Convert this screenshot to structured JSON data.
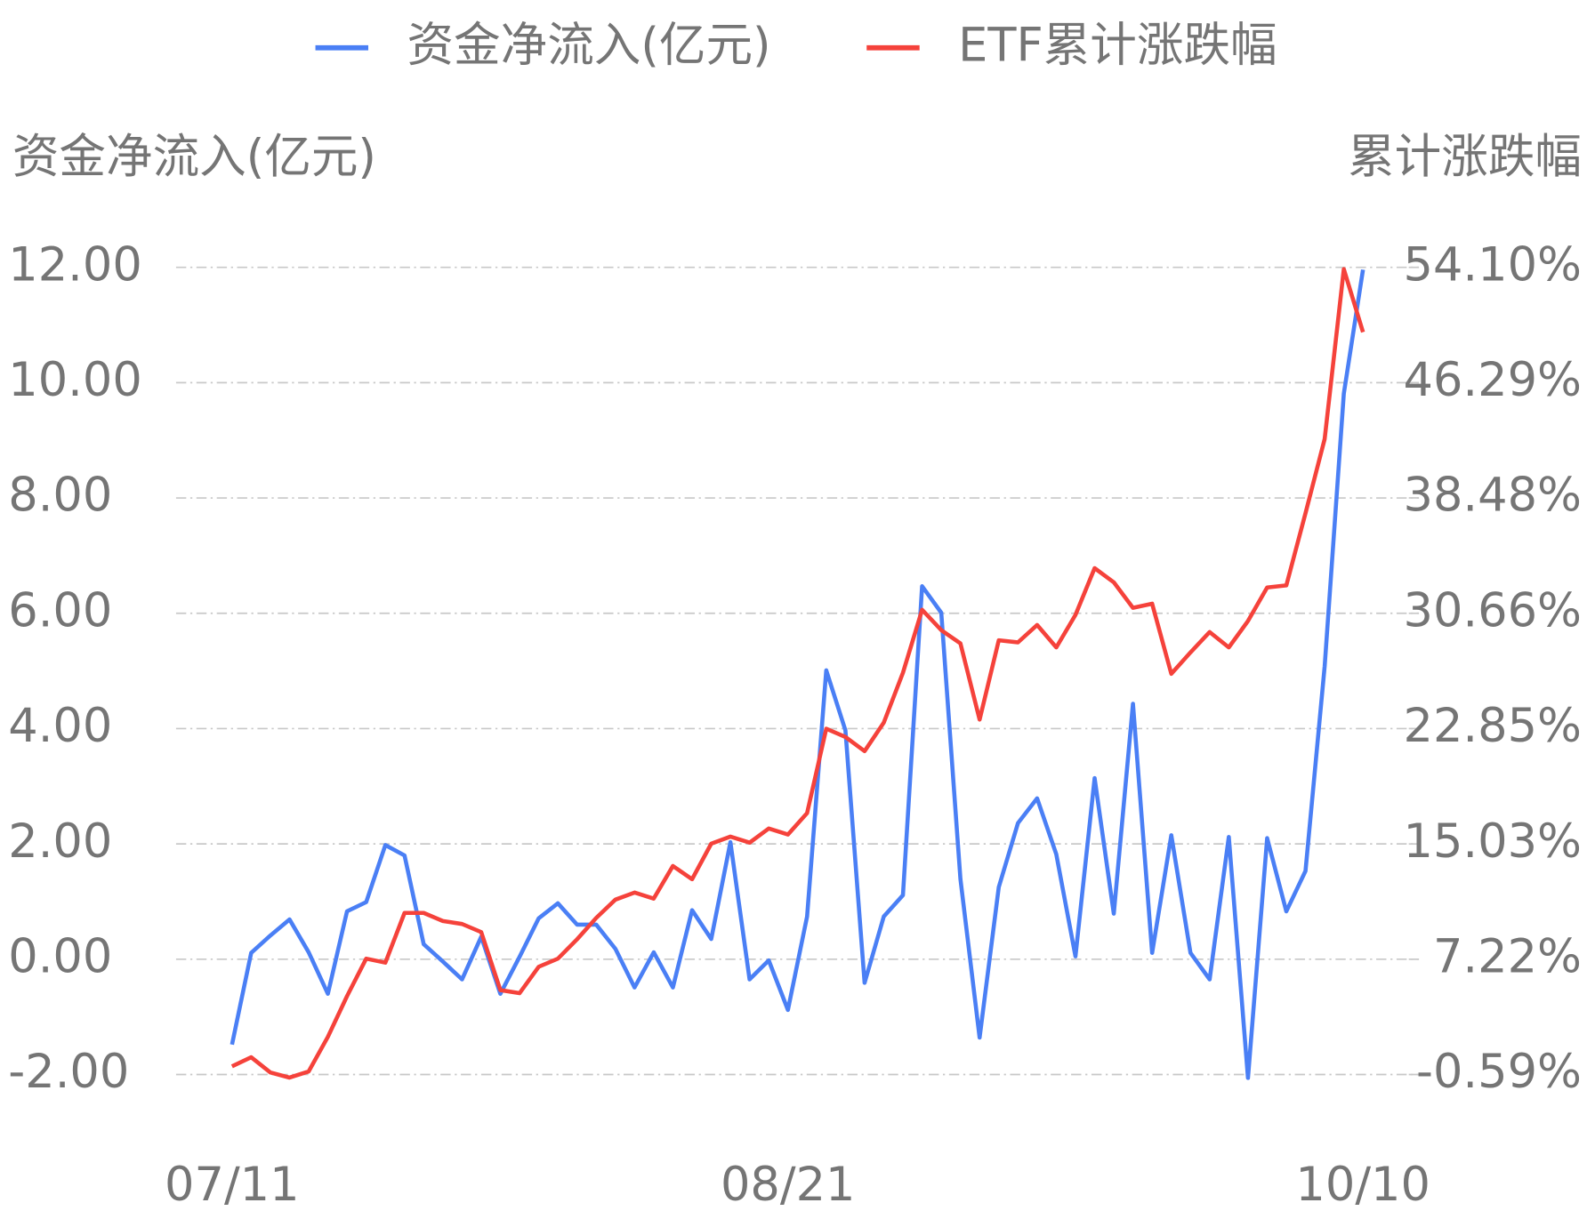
{
  "chart_data": {
    "type": "line",
    "y_label": "资金净流入(亿元)",
    "y2_label": "累计涨跌幅",
    "categories": [
      "07/11",
      null,
      null,
      null,
      null,
      null,
      null,
      null,
      null,
      null,
      null,
      null,
      null,
      null,
      null,
      null,
      null,
      null,
      null,
      null,
      null,
      null,
      null,
      null,
      null,
      null,
      null,
      null,
      null,
      "08/21",
      null,
      null,
      null,
      null,
      null,
      null,
      null,
      null,
      null,
      null,
      null,
      null,
      null,
      null,
      null,
      null,
      null,
      null,
      null,
      null,
      null,
      null,
      null,
      null,
      null,
      null,
      null,
      null,
      null,
      "10/10"
    ],
    "series": [
      {
        "name": "资金净流入(亿元)",
        "color": "#4a7ff5",
        "values": [
          -1.48,
          0.11,
          0.41,
          0.69,
          0.12,
          -0.6,
          0.83,
          0.99,
          1.98,
          1.8,
          0.26,
          -0.04,
          -0.35,
          0.39,
          -0.6,
          0.04,
          0.71,
          0.97,
          0.6,
          0.6,
          0.18,
          -0.49,
          0.12,
          -0.49,
          0.85,
          0.35,
          2.03,
          -0.35,
          -0.02,
          -0.88,
          0.74,
          5.01,
          3.97,
          -0.41,
          0.74,
          1.11,
          6.47,
          6.01,
          1.39,
          -1.36,
          1.25,
          2.36,
          2.79,
          1.82,
          0.05,
          3.14,
          0.79,
          4.43,
          0.11,
          2.15,
          0.11,
          -0.35,
          2.12,
          -2.06,
          2.1,
          0.83,
          1.53,
          5.08,
          9.81,
          11.96
        ]
      },
      {
        "name": "ETF累计涨跌幅",
        "color": "#f5423b",
        "axis": "y2",
        "values": [
          -0.04,
          0.58,
          -0.45,
          -0.8,
          -0.38,
          1.96,
          4.72,
          7.26,
          6.99,
          10.36,
          10.36,
          9.81,
          9.61,
          9.06,
          5.13,
          4.92,
          6.71,
          7.26,
          8.57,
          10.02,
          11.26,
          11.74,
          11.33,
          13.54,
          12.64,
          15.05,
          15.53,
          15.12,
          16.08,
          15.67,
          17.12,
          22.84,
          22.28,
          21.32,
          23.25,
          26.63,
          30.9,
          29.52,
          28.62,
          23.46,
          28.83,
          28.69,
          29.87,
          28.35,
          30.55,
          33.72,
          32.76,
          31.03,
          31.31,
          26.56,
          28.01,
          29.39,
          28.35,
          30.14,
          32.41,
          32.55,
          37.44,
          42.47,
          53.98,
          49.71
        ]
      }
    ],
    "ylim": [
      -2,
      12
    ],
    "yticks": [
      {
        "value": -2,
        "label": "-2.00"
      },
      {
        "value": 0,
        "label": "0.00"
      },
      {
        "value": 2,
        "label": "2.00"
      },
      {
        "value": 4,
        "label": "4.00"
      },
      {
        "value": 6,
        "label": "6.00"
      },
      {
        "value": 8,
        "label": "8.00"
      },
      {
        "value": 10,
        "label": "10.00"
      },
      {
        "value": 12,
        "label": "12.00"
      }
    ],
    "y2lim": [
      -0.59,
      54.1
    ],
    "y2ticks": [
      {
        "value": -0.59,
        "label": "-0.59%"
      },
      {
        "value": 7.22,
        "label": "7.22%"
      },
      {
        "value": 15.03,
        "label": "15.03%"
      },
      {
        "value": 22.85,
        "label": "22.85%"
      },
      {
        "value": 30.66,
        "label": "30.66%"
      },
      {
        "value": 38.48,
        "label": "38.48%"
      },
      {
        "value": 46.29,
        "label": "46.29%"
      },
      {
        "value": 54.1,
        "label": "54.10%"
      }
    ],
    "grid": true,
    "legend": "top"
  }
}
